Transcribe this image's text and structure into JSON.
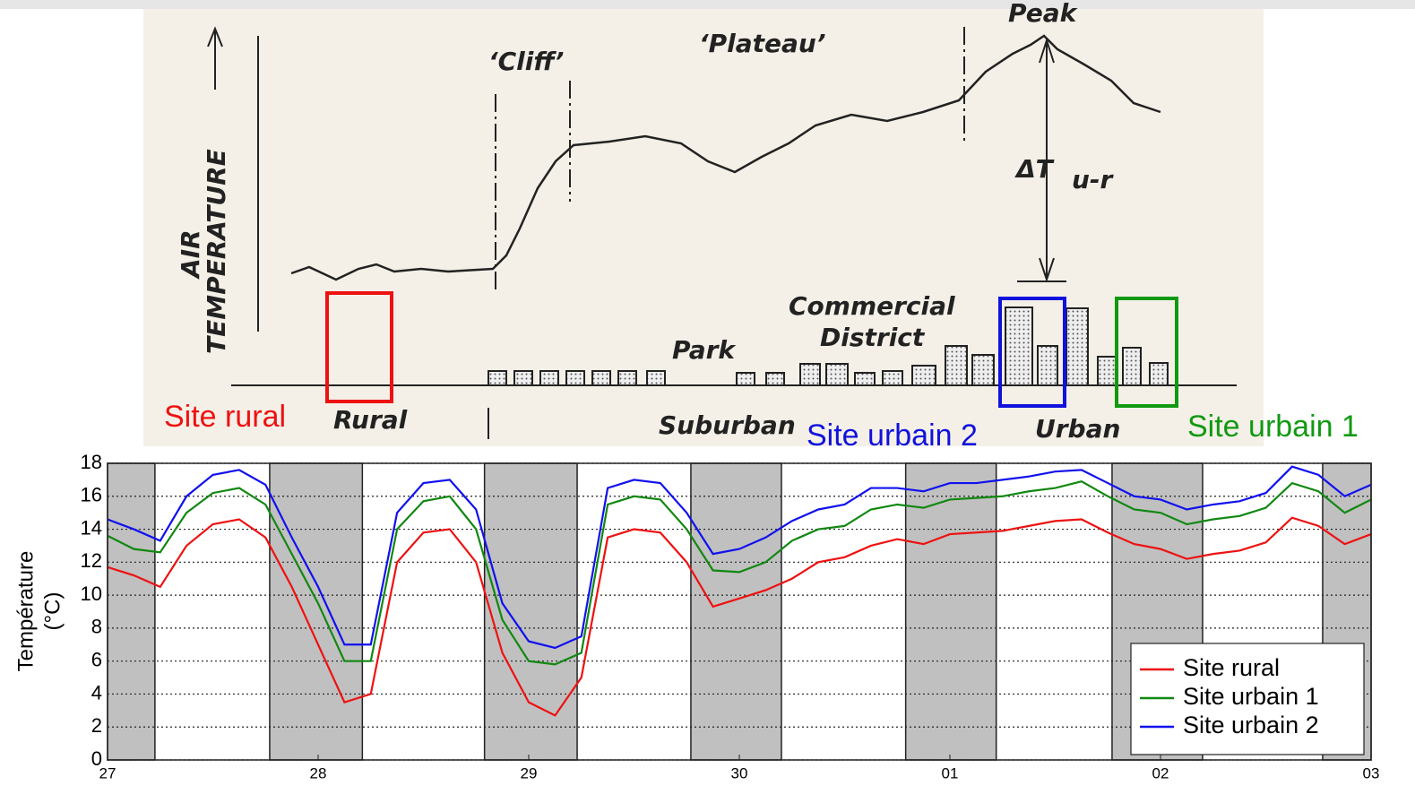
{
  "diagram": {
    "peak": "Peak",
    "cliff": "‘Cliff’",
    "plateau": "‘Plateau’",
    "air_temperature": [
      "AIR",
      "TEMPERATURE"
    ],
    "delta_t": "ΔT",
    "delta_t_sub": "u-r",
    "commercial_district": [
      "Commercial",
      "District"
    ],
    "park": "Park",
    "rural": "Rural",
    "suburban": "Suburban",
    "urban": "Urban",
    "sites": [
      {
        "label": "Site rural",
        "color": "#ee1111"
      },
      {
        "label": "Site urbain 2",
        "color": "#1111dd"
      },
      {
        "label": "Site urbain 1",
        "color": "#119911"
      }
    ]
  },
  "chart_data": {
    "type": "line",
    "y_label": [
      "Température",
      "(°C)"
    ],
    "x": [
      0,
      0.125,
      0.25,
      0.375,
      0.5,
      0.625,
      0.75,
      0.875,
      1,
      1.125,
      1.25,
      1.375,
      1.5,
      1.625,
      1.75,
      1.875,
      2,
      2.125,
      2.25,
      2.375,
      2.5,
      2.625,
      2.75,
      2.875,
      3,
      3.125,
      3.25,
      3.375,
      3.5,
      3.625,
      3.75,
      3.875,
      4,
      4.125,
      4.25,
      4.375,
      4.5,
      4.625,
      4.75,
      4.875,
      5,
      5.125,
      5.25,
      5.375,
      5.5,
      5.625,
      5.75,
      5.875,
      6
    ],
    "series": [
      {
        "name": "Site rural",
        "color": "#ee1111",
        "values": [
          11.7,
          11.2,
          10.5,
          13,
          14.3,
          14.6,
          13.5,
          10.5,
          7,
          3.5,
          4,
          12,
          13.8,
          14,
          12,
          6.5,
          3.5,
          2.7,
          5,
          13.5,
          14,
          13.8,
          12,
          9.3,
          9.8,
          10.3,
          11,
          12,
          12.3,
          13,
          13.4,
          13.1,
          13.7,
          13.8,
          13.9,
          14.2,
          14.5,
          14.6,
          13.8,
          13.1,
          12.8,
          12.2,
          12.5,
          12.7,
          13.2,
          14.7,
          14.2,
          13.1,
          13.7
        ]
      },
      {
        "name": "Site urbain 1",
        "color": "#118811",
        "values": [
          13.6,
          12.8,
          12.6,
          15,
          16.2,
          16.5,
          15.5,
          12.5,
          9.5,
          6,
          6,
          14,
          15.7,
          16,
          14,
          8.5,
          6,
          5.8,
          6.5,
          15.5,
          16,
          15.8,
          14,
          11.5,
          11.4,
          12,
          13.3,
          14,
          14.2,
          15.2,
          15.5,
          15.3,
          15.8,
          15.9,
          16,
          16.3,
          16.5,
          16.9,
          16,
          15.2,
          15,
          14.3,
          14.6,
          14.8,
          15.3,
          16.8,
          16.3,
          15,
          15.8
        ]
      },
      {
        "name": "Site urbain 2",
        "color": "#1111ee",
        "values": [
          14.6,
          14,
          13.3,
          16,
          17.3,
          17.6,
          16.7,
          13.5,
          10.5,
          7,
          7,
          15,
          16.8,
          17,
          15.2,
          9.5,
          7.2,
          6.8,
          7.5,
          16.5,
          17,
          16.8,
          15,
          12.5,
          12.8,
          13.5,
          14.5,
          15.2,
          15.5,
          16.5,
          16.5,
          16.3,
          16.8,
          16.8,
          17,
          17.2,
          17.5,
          17.6,
          16.8,
          16,
          15.8,
          15.2,
          15.5,
          15.7,
          16.2,
          17.8,
          17.3,
          16,
          16.7
        ]
      }
    ],
    "shaded_spans": [
      [
        0,
        0.225
      ],
      [
        0.77,
        1.21
      ],
      [
        1.79,
        2.23
      ],
      [
        2.77,
        3.2
      ],
      [
        3.79,
        4.22
      ],
      [
        4.77,
        5.2
      ],
      [
        5.77,
        6
      ]
    ],
    "shade_color": "#c0c0c0",
    "xlim": [
      0,
      6
    ],
    "xticks": [
      {
        "value": 0,
        "label": "27"
      },
      {
        "value": 1,
        "label": "28"
      },
      {
        "value": 2,
        "label": "29"
      },
      {
        "value": 3,
        "label": "30"
      },
      {
        "value": 4,
        "label": "01"
      },
      {
        "value": 5,
        "label": "02"
      },
      {
        "value": 6,
        "label": "03"
      }
    ],
    "ylim": [
      0,
      18
    ],
    "yticks": [
      0,
      2,
      4,
      6,
      8,
      10,
      12,
      14,
      16,
      18
    ],
    "grid": true,
    "legend": "lower right"
  }
}
